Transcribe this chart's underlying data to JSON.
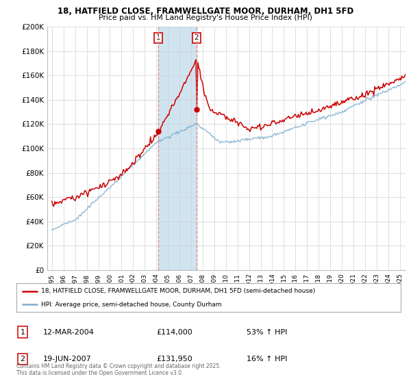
{
  "title_line1": "18, HATFIELD CLOSE, FRAMWELLGATE MOOR, DURHAM, DH1 5FD",
  "title_line2": "Price paid vs. HM Land Registry's House Price Index (HPI)",
  "ylabel_ticks": [
    "£0",
    "£20K",
    "£40K",
    "£60K",
    "£80K",
    "£100K",
    "£120K",
    "£140K",
    "£160K",
    "£180K",
    "£200K"
  ],
  "ytick_values": [
    0,
    20000,
    40000,
    60000,
    80000,
    100000,
    120000,
    140000,
    160000,
    180000,
    200000
  ],
  "sale1_date": "12-MAR-2004",
  "sale1_price": 114000,
  "sale1_hpi": "53% ↑ HPI",
  "sale2_date": "19-JUN-2007",
  "sale2_price": 131950,
  "sale2_hpi": "16% ↑ HPI",
  "legend_red": "18, HATFIELD CLOSE, FRAMWELLGATE MOOR, DURHAM, DH1 5FD (semi-detached house)",
  "legend_blue": "HPI: Average price, semi-detached house, County Durham",
  "footnote": "Contains HM Land Registry data © Crown copyright and database right 2025.\nThis data is licensed under the Open Government Licence v3.0.",
  "sale1_x": 2004.19,
  "sale2_x": 2007.47,
  "red_color": "#cc0000",
  "blue_color": "#7aadcf",
  "vline_color": "#dd8888",
  "background_color": "#ffffff",
  "grid_color": "#d0d0d0",
  "span_color": "#d0e4f0"
}
